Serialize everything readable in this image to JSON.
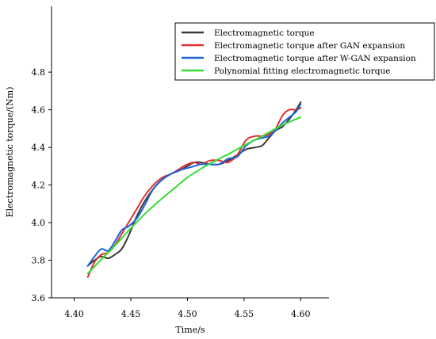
{
  "chart_data": {
    "type": "line",
    "xlabel": "Time/s",
    "ylabel": "Electromagnetic torque/(Nm)",
    "xlim": [
      4.38,
      4.625
    ],
    "ylim": [
      3.6,
      5.15
    ],
    "xticks": [
      4.4,
      4.45,
      4.5,
      4.55,
      4.6
    ],
    "xtick_labels": [
      "4.40",
      "4.45",
      "4.50",
      "4.55",
      "4.60"
    ],
    "yticks": [
      3.6,
      3.8,
      4.0,
      4.2,
      4.4,
      4.6,
      4.8
    ],
    "ytick_labels": [
      "3.6",
      "3.8",
      "4.0",
      "4.2",
      "4.4",
      "4.6",
      "4.8"
    ],
    "grid": false,
    "legend_position": "top-right",
    "series": [
      {
        "name": "Electromagnetic torque",
        "color": "#3a3a3a",
        "x": [
          4.412,
          4.418,
          4.424,
          4.43,
          4.436,
          4.442,
          4.448,
          4.455,
          4.462,
          4.47,
          4.478,
          4.486,
          4.494,
          4.5,
          4.506,
          4.512,
          4.52,
          4.528,
          4.536,
          4.544,
          4.552,
          4.56,
          4.566,
          4.572,
          4.578,
          4.584,
          4.59,
          4.596,
          4.6
        ],
        "values": [
          3.77,
          3.8,
          3.82,
          3.81,
          3.83,
          3.86,
          3.93,
          4.03,
          4.11,
          4.18,
          4.23,
          4.26,
          4.28,
          4.3,
          4.32,
          4.32,
          4.31,
          4.31,
          4.33,
          4.36,
          4.39,
          4.4,
          4.41,
          4.45,
          4.49,
          4.51,
          4.55,
          4.6,
          4.64
        ]
      },
      {
        "name": "Electromagnetic torque after GAN expansion",
        "color": "#e03030",
        "x": [
          4.412,
          4.418,
          4.424,
          4.43,
          4.436,
          4.442,
          4.448,
          4.455,
          4.462,
          4.47,
          4.478,
          4.486,
          4.494,
          4.5,
          4.506,
          4.512,
          4.52,
          4.528,
          4.536,
          4.544,
          4.552,
          4.56,
          4.566,
          4.572,
          4.578,
          4.584,
          4.59,
          4.596,
          4.6
        ],
        "values": [
          3.71,
          3.79,
          3.83,
          3.84,
          3.88,
          3.94,
          4.0,
          4.07,
          4.14,
          4.2,
          4.24,
          4.26,
          4.29,
          4.31,
          4.32,
          4.31,
          4.33,
          4.33,
          4.32,
          4.36,
          4.44,
          4.46,
          4.46,
          4.47,
          4.5,
          4.57,
          4.6,
          4.6,
          4.61
        ]
      },
      {
        "name": "Electromagnetic torque after W-GAN expansion",
        "color": "#1f63d8",
        "x": [
          4.412,
          4.418,
          4.424,
          4.43,
          4.436,
          4.442,
          4.448,
          4.455,
          4.462,
          4.47,
          4.478,
          4.486,
          4.494,
          4.5,
          4.506,
          4.512,
          4.52,
          4.528,
          4.536,
          4.544,
          4.552,
          4.56,
          4.566,
          4.572,
          4.578,
          4.584,
          4.59,
          4.596,
          4.6
        ],
        "values": [
          3.77,
          3.82,
          3.86,
          3.85,
          3.9,
          3.96,
          3.98,
          4.02,
          4.09,
          4.18,
          4.23,
          4.26,
          4.28,
          4.29,
          4.3,
          4.31,
          4.31,
          4.31,
          4.34,
          4.35,
          4.41,
          4.44,
          4.45,
          4.46,
          4.49,
          4.53,
          4.56,
          4.59,
          4.63
        ]
      },
      {
        "name": "Polynomial fitting electromagnetic torque",
        "color": "#33dd33",
        "x": [
          4.412,
          4.425,
          4.438,
          4.45,
          4.463,
          4.476,
          4.488,
          4.5,
          4.513,
          4.525,
          4.538,
          4.55,
          4.563,
          4.575,
          4.588,
          4.6
        ],
        "values": [
          3.73,
          3.81,
          3.89,
          3.97,
          4.05,
          4.12,
          4.18,
          4.24,
          4.29,
          4.33,
          4.37,
          4.41,
          4.45,
          4.49,
          4.53,
          4.56
        ]
      }
    ]
  }
}
